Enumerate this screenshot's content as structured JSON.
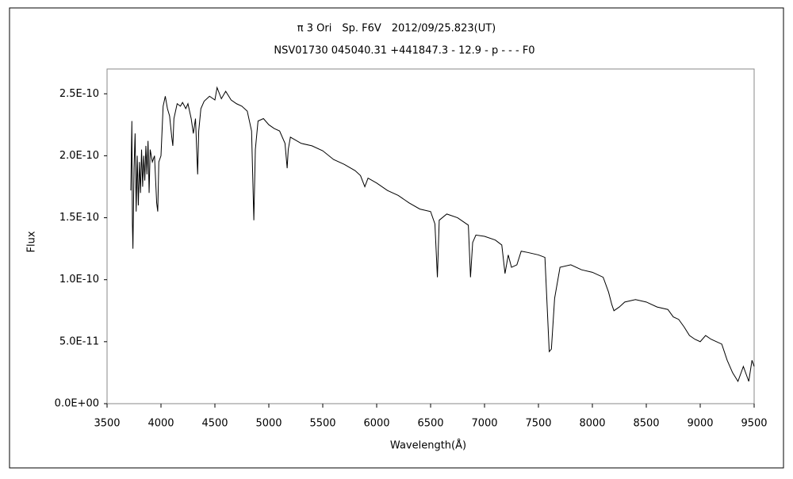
{
  "chart_data": {
    "type": "line",
    "title": "π 3 Ori　Sp. F6V　2012/09/25.823(UT)",
    "subtitle": "NSV01730 045040.31 +441847.3 - 12.9 - p - - - F0",
    "x_label": "Wavelength(Å)",
    "y_label": "Flux",
    "color": "#000000",
    "grid": false,
    "xlim": [
      3500,
      9500
    ],
    "xticks": [
      3500,
      4000,
      4500,
      5000,
      5500,
      6000,
      6500,
      7000,
      7500,
      8000,
      8500,
      9000,
      9500
    ],
    "ylim": [
      0,
      2.7e-10
    ],
    "yticks": [
      {
        "value": 0,
        "label": "0.0E+00"
      },
      {
        "value": 5e-11,
        "label": "5.0E-11"
      },
      {
        "value": 1e-10,
        "label": "1.0E-10"
      },
      {
        "value": 1.5e-10,
        "label": "1.5E-10"
      },
      {
        "value": 2e-10,
        "label": "2.0E-10"
      },
      {
        "value": 2.5e-10,
        "label": "2.5E-10"
      }
    ],
    "x": [
      3720,
      3730,
      3735,
      3740,
      3750,
      3760,
      3770,
      3780,
      3790,
      3800,
      3810,
      3820,
      3830,
      3840,
      3850,
      3860,
      3870,
      3880,
      3890,
      3900,
      3920,
      3940,
      3960,
      3970,
      3980,
      4000,
      4020,
      4040,
      4060,
      4080,
      4100,
      4110,
      4120,
      4150,
      4180,
      4200,
      4230,
      4250,
      4280,
      4300,
      4320,
      4340,
      4350,
      4370,
      4400,
      4450,
      4500,
      4520,
      4560,
      4600,
      4650,
      4700,
      4750,
      4800,
      4840,
      4861,
      4875,
      4900,
      4950,
      5000,
      5050,
      5100,
      5150,
      5170,
      5180,
      5200,
      5300,
      5400,
      5500,
      5600,
      5700,
      5800,
      5850,
      5890,
      5920,
      6000,
      6100,
      6200,
      6300,
      6400,
      6500,
      6540,
      6563,
      6580,
      6650,
      6750,
      6850,
      6870,
      6890,
      6920,
      7000,
      7100,
      7160,
      7190,
      7220,
      7250,
      7300,
      7340,
      7400,
      7500,
      7560,
      7600,
      7620,
      7650,
      7700,
      7800,
      7900,
      8000,
      8100,
      8150,
      8180,
      8200,
      8250,
      8300,
      8400,
      8500,
      8600,
      8700,
      8750,
      8800,
      8850,
      8900,
      8950,
      9000,
      9050,
      9100,
      9150,
      9200,
      9250,
      9300,
      9350,
      9400,
      9450,
      9480,
      9500
    ],
    "values": [
      1.72e-10,
      2.28e-10,
      1.45e-10,
      1.25e-10,
      1.9e-10,
      2.18e-10,
      1.55e-10,
      2e-10,
      1.6e-10,
      1.95e-10,
      1.7e-10,
      2.05e-10,
      1.75e-10,
      2e-10,
      1.8e-10,
      2.08e-10,
      1.85e-10,
      2.12e-10,
      1.7e-10,
      2.05e-10,
      1.95e-10,
      2e-10,
      1.62e-10,
      1.55e-10,
      1.95e-10,
      2e-10,
      2.4e-10,
      2.48e-10,
      2.38e-10,
      2.32e-10,
      2.15e-10,
      2.08e-10,
      2.3e-10,
      2.42e-10,
      2.4e-10,
      2.43e-10,
      2.38e-10,
      2.42e-10,
      2.3e-10,
      2.18e-10,
      2.3e-10,
      1.85e-10,
      2.2e-10,
      2.38e-10,
      2.44e-10,
      2.48e-10,
      2.45e-10,
      2.55e-10,
      2.46e-10,
      2.52e-10,
      2.45e-10,
      2.42e-10,
      2.4e-10,
      2.36e-10,
      2.2e-10,
      1.48e-10,
      2.05e-10,
      2.28e-10,
      2.3e-10,
      2.25e-10,
      2.22e-10,
      2.2e-10,
      2.1e-10,
      1.9e-10,
      2.05e-10,
      2.15e-10,
      2.1e-10,
      2.08e-10,
      2.04e-10,
      1.97e-10,
      1.93e-10,
      1.88e-10,
      1.84e-10,
      1.75e-10,
      1.82e-10,
      1.78e-10,
      1.72e-10,
      1.68e-10,
      1.62e-10,
      1.57e-10,
      1.55e-10,
      1.45e-10,
      1.02e-10,
      1.48e-10,
      1.53e-10,
      1.5e-10,
      1.44e-10,
      1.02e-10,
      1.3e-10,
      1.36e-10,
      1.35e-10,
      1.32e-10,
      1.28e-10,
      1.05e-10,
      1.2e-10,
      1.1e-10,
      1.12e-10,
      1.23e-10,
      1.22e-10,
      1.2e-10,
      1.18e-10,
      4.2e-11,
      4.4e-11,
      8.5e-11,
      1.1e-10,
      1.12e-10,
      1.08e-10,
      1.06e-10,
      1.02e-10,
      9e-11,
      8e-11,
      7.5e-11,
      7.8e-11,
      8.2e-11,
      8.4e-11,
      8.2e-11,
      7.8e-11,
      7.6e-11,
      7e-11,
      6.8e-11,
      6.2e-11,
      5.5e-11,
      5.2e-11,
      5e-11,
      5.5e-11,
      5.2e-11,
      5e-11,
      4.8e-11,
      3.5e-11,
      2.5e-11,
      1.8e-11,
      3e-11,
      1.8e-11,
      3.5e-11,
      3e-11
    ]
  }
}
